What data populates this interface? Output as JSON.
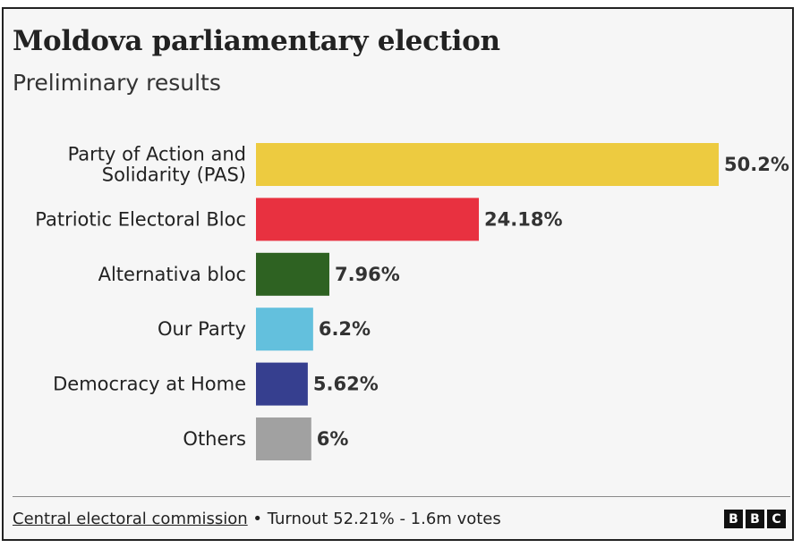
{
  "header": {
    "title": "Moldova parliamentary election",
    "subtitle": "Preliminary results"
  },
  "chart_data": {
    "type": "bar",
    "orientation": "horizontal",
    "title": "Moldova parliamentary election",
    "subtitle": "Preliminary results",
    "categories": [
      [
        "Party of Action and",
        "Solidarity (PAS)"
      ],
      [
        "Patriotic Electoral Bloc"
      ],
      [
        "Alternativa bloc"
      ],
      [
        "Our Party"
      ],
      [
        "Democracy at Home"
      ],
      [
        "Others"
      ]
    ],
    "values": [
      50.2,
      24.18,
      7.96,
      6.2,
      5.62,
      6
    ],
    "value_labels": [
      "50.2%",
      "24.18%",
      "7.96%",
      "6.2%",
      "5.62%",
      "6%"
    ],
    "colors": [
      "#edcb40",
      "#e83140",
      "#2e6222",
      "#63c0dd",
      "#363f8f",
      "#a1a1a1"
    ],
    "xlim": [
      0,
      50.2
    ],
    "grid": false,
    "legend": "none"
  },
  "footer": {
    "source": "Central electoral commission",
    "details": " • Turnout 52.21% - 1.6m votes"
  },
  "logo": {
    "letters": [
      "B",
      "B",
      "C"
    ]
  }
}
